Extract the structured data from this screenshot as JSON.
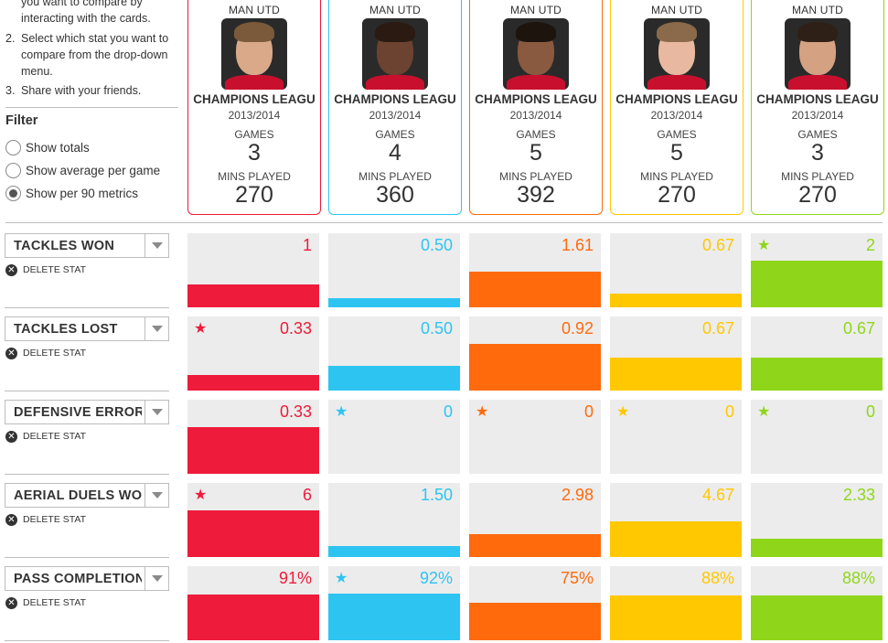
{
  "instructions": {
    "item1_tail": "you want to compare by interacting with the cards.",
    "item2_num": "2.",
    "item2": "Select which stat you want to compare from the drop-down menu.",
    "item3_num": "3.",
    "item3": "Share with your friends."
  },
  "filter": {
    "title": "Filter",
    "options": [
      {
        "label": "Show totals",
        "selected": false
      },
      {
        "label": "Show average per game",
        "selected": false
      },
      {
        "label": "Show per 90 metrics",
        "selected": true
      }
    ]
  },
  "cards": [
    {
      "club": "MAN UTD",
      "competition": "CHAMPIONS LEAGU",
      "season": "2013/2014",
      "games_label": "GAMES",
      "games": "3",
      "mins_label": "MINS PLAYED",
      "mins": "270",
      "color": "#ee1b3a",
      "skin": "#d9a98a",
      "hair": "#7a5a3a"
    },
    {
      "club": "MAN UTD",
      "competition": "CHAMPIONS LEAGU",
      "season": "2013/2014",
      "games_label": "GAMES",
      "games": "4",
      "mins_label": "MINS PLAYED",
      "mins": "360",
      "color": "#2ec4f1",
      "skin": "#6b4330",
      "hair": "#2a1a12"
    },
    {
      "club": "MAN UTD",
      "competition": "CHAMPIONS LEAGU",
      "season": "2013/2014",
      "games_label": "GAMES",
      "games": "5",
      "mins_label": "MINS PLAYED",
      "mins": "392",
      "color": "#ff6a0d",
      "skin": "#8a5a40",
      "hair": "#1e140e"
    },
    {
      "club": "MAN UTD",
      "competition": "CHAMPIONS LEAGU",
      "season": "2013/2014",
      "games_label": "GAMES",
      "games": "5",
      "mins_label": "MINS PLAYED",
      "mins": "270",
      "color": "#ffc800",
      "skin": "#e8b9a0",
      "hair": "#8a6a4a"
    },
    {
      "club": "MAN UTD",
      "competition": "CHAMPIONS LEAGU",
      "season": "2013/2014",
      "games_label": "GAMES",
      "games": "3",
      "mins_label": "MINS PLAYED",
      "mins": "270",
      "color": "#8fd61a",
      "skin": "#d4a183",
      "hair": "#2e2016"
    }
  ],
  "stats": [
    {
      "name": "TACKLES WON",
      "delete_label": "DELETE STAT",
      "values": [
        "1",
        "0.50",
        "1.61",
        "0.67",
        "2"
      ],
      "fill": [
        0.3,
        0.12,
        0.48,
        0.18,
        0.62
      ],
      "star": [
        false,
        false,
        false,
        false,
        true
      ]
    },
    {
      "name": "TACKLES LOST",
      "delete_label": "DELETE STAT",
      "values": [
        "0.33",
        "0.50",
        "0.92",
        "0.67",
        "0.67"
      ],
      "fill": [
        0.21,
        0.33,
        0.62,
        0.44,
        0.44
      ],
      "star": [
        true,
        false,
        false,
        false,
        false
      ]
    },
    {
      "name": "DEFENSIVE ERRORS",
      "delete_label": "DELETE STAT",
      "values": [
        "0.33",
        "0",
        "0",
        "0",
        "0"
      ],
      "fill": [
        0.62,
        0,
        0,
        0,
        0
      ],
      "star": [
        false,
        true,
        true,
        true,
        true
      ]
    },
    {
      "name": "AERIAL DUELS WON",
      "delete_label": "DELETE STAT",
      "values": [
        "6",
        "1.50",
        "2.98",
        "4.67",
        "2.33"
      ],
      "fill": [
        0.62,
        0.15,
        0.3,
        0.48,
        0.24
      ],
      "star": [
        true,
        false,
        false,
        false,
        false
      ]
    },
    {
      "name": "PASS COMPLETION",
      "delete_label": "DELETE STAT",
      "values": [
        "91%",
        "92%",
        "75%",
        "88%",
        "88%"
      ],
      "fill": [
        0.61,
        0.62,
        0.5,
        0.59,
        0.59
      ],
      "star": [
        false,
        true,
        false,
        false,
        false
      ]
    }
  ],
  "icons": {
    "star": "star-icon",
    "delete": "close-circle-icon",
    "dropdown": "chevron-down-icon"
  },
  "star_glyph": "★",
  "delete_glyph": "✕"
}
